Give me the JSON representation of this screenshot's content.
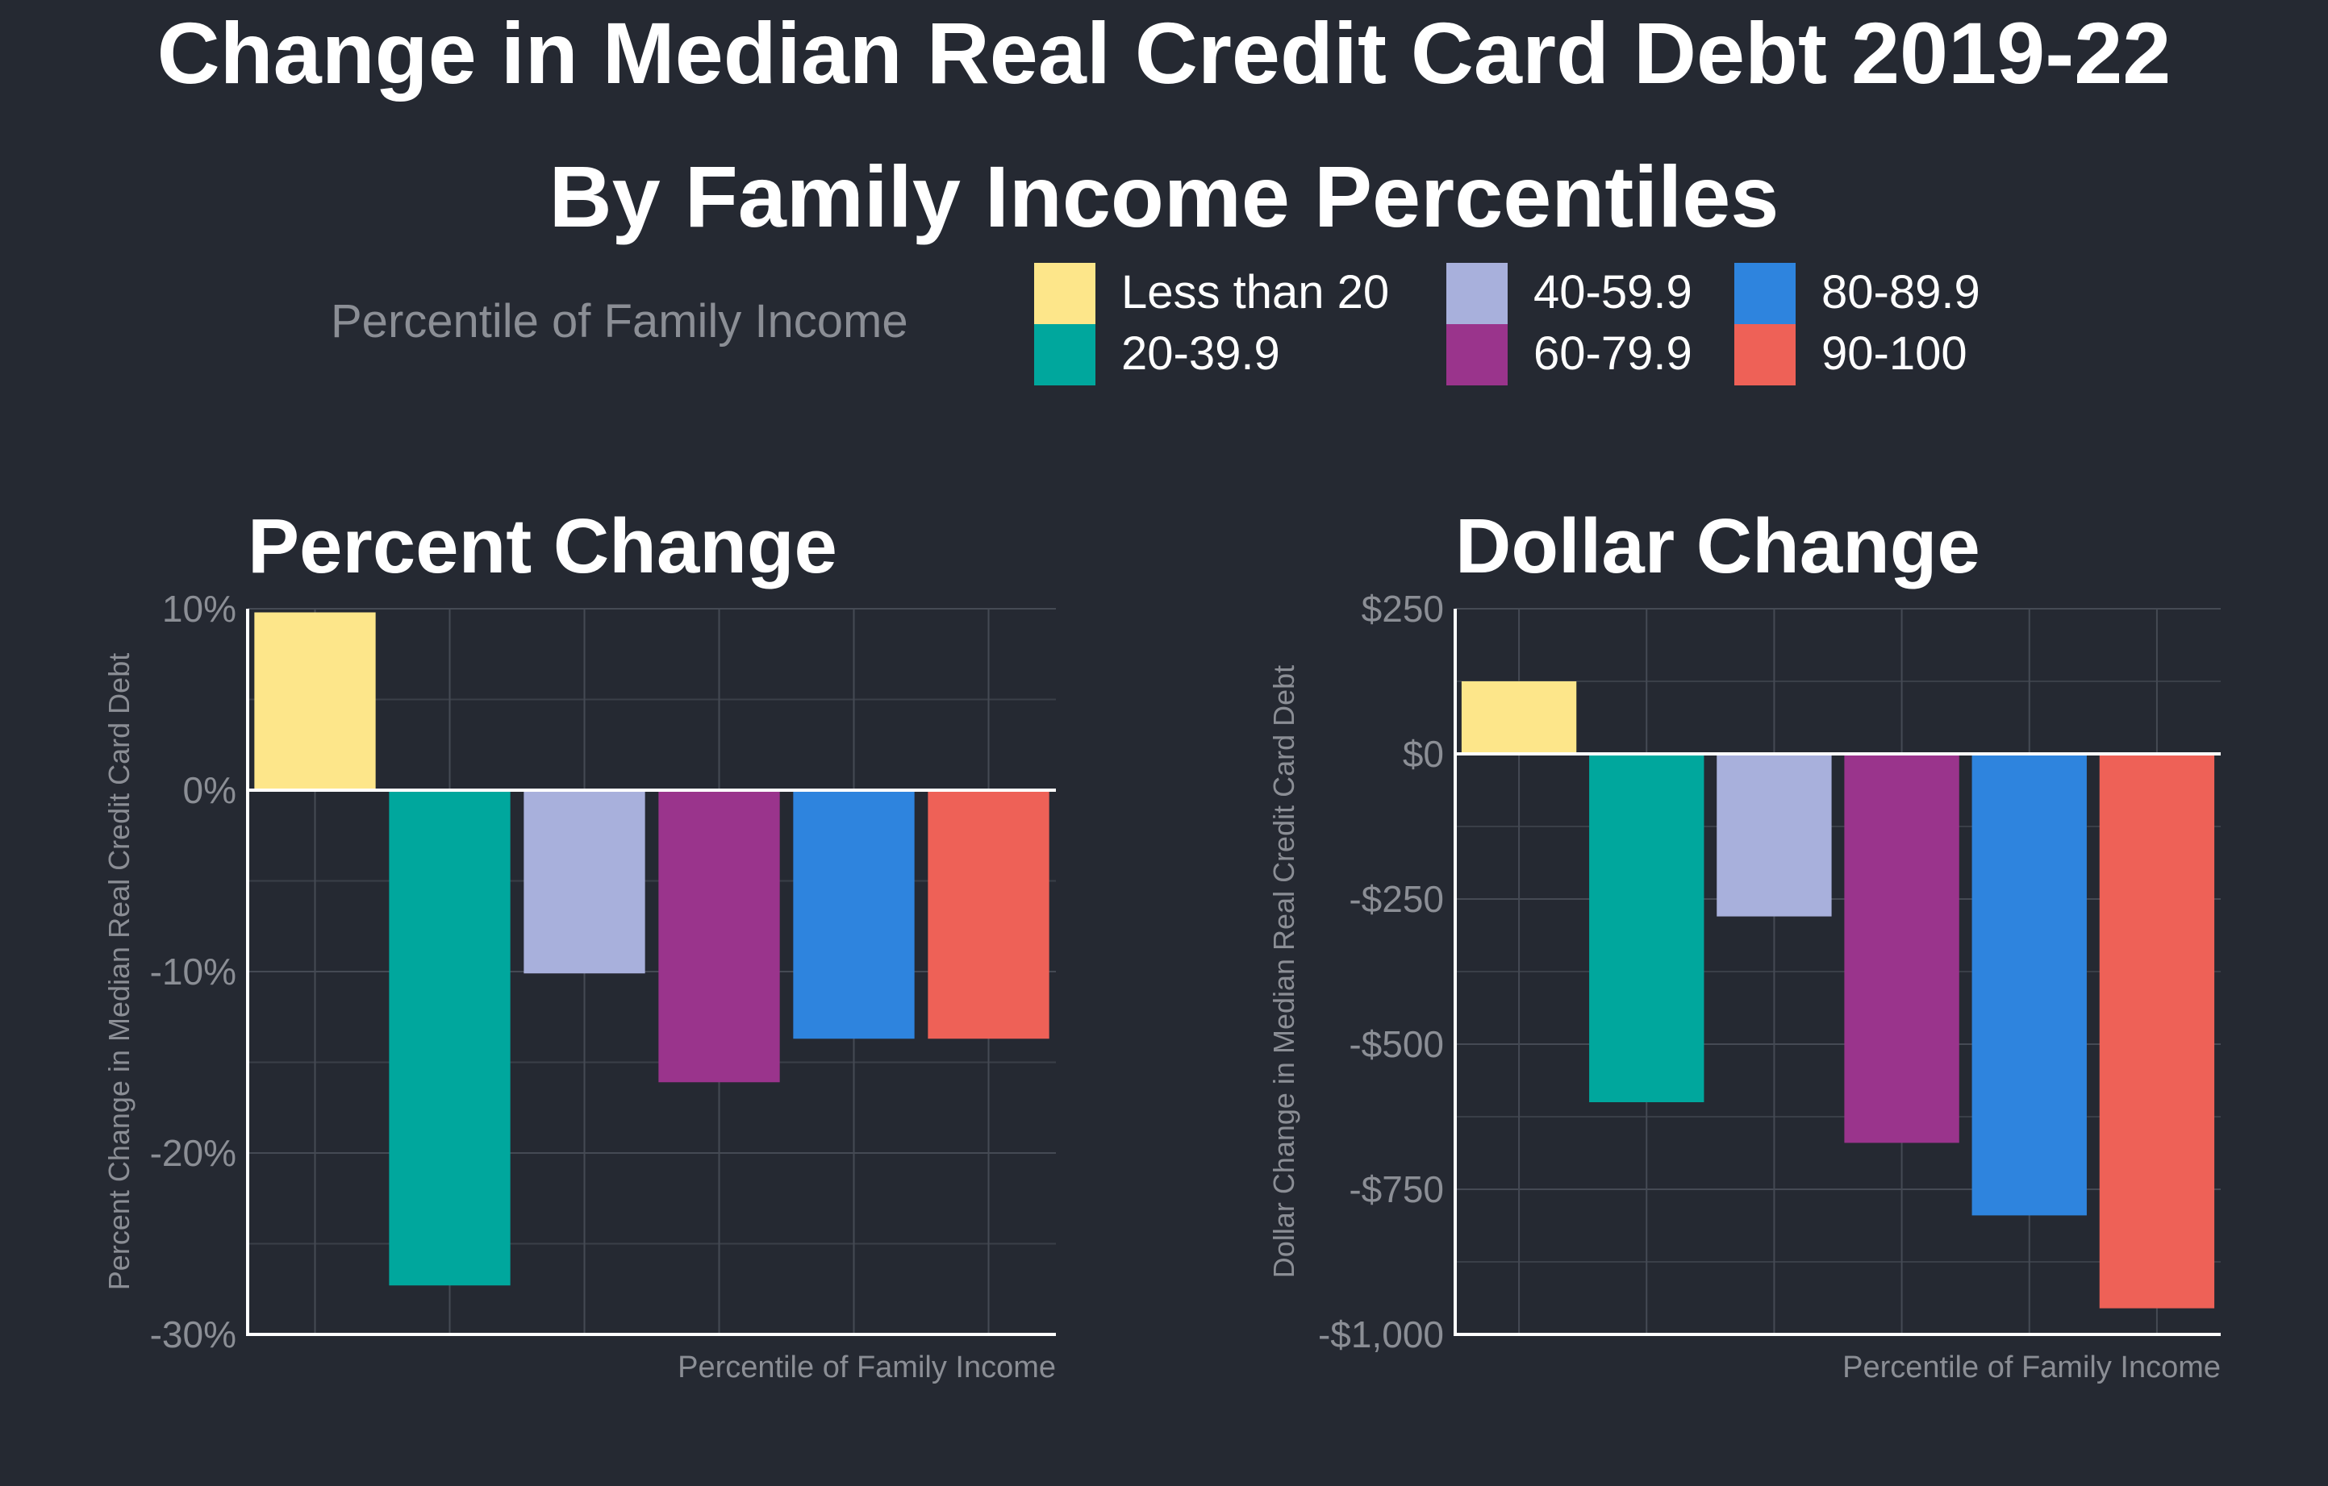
{
  "header": {
    "title": "Change in Median Real Credit Card Debt 2019-22",
    "subtitle": "By Family Income Percentiles"
  },
  "legend": {
    "title": "Percentile of Family Income",
    "items": [
      {
        "label": "Less than 20",
        "color": "#fde68a"
      },
      {
        "label": "20-39.9",
        "color": "#00a79d"
      },
      {
        "label": "40-59.9",
        "color": "#a8b0dc"
      },
      {
        "label": "60-79.9",
        "color": "#9a348c"
      },
      {
        "label": "80-89.9",
        "color": "#2e84de"
      },
      {
        "label": "90-100",
        "color": "#ee6157"
      }
    ]
  },
  "chart_data": [
    {
      "type": "bar",
      "title": "Percent Change",
      "xlabel": "Percentile of Family Income",
      "ylabel": "Percent Change in Median Real Credit Card Debt",
      "categories": [
        "Less than 20",
        "20-39.9",
        "40-59.9",
        "60-79.9",
        "80-89.9",
        "90-100"
      ],
      "values": [
        9.8,
        -27.3,
        -10.1,
        -16.1,
        -13.7,
        -13.7
      ],
      "ylim": [
        -30,
        10
      ],
      "yticks": [
        10,
        0,
        -10,
        -20,
        -30
      ],
      "ytick_labels": [
        "10%",
        "0%",
        "-10%",
        "-20%",
        "-30%"
      ],
      "grid": true,
      "legend": "shared-top"
    },
    {
      "type": "bar",
      "title": "Dollar Change",
      "xlabel": "Percentile of Family Income",
      "ylabel": "Dollar Change in Median Real Credit Card Debt",
      "categories": [
        "Less than 20",
        "20-39.9",
        "40-59.9",
        "60-79.9",
        "80-89.9",
        "90-100"
      ],
      "values": [
        125,
        -600,
        -280,
        -670,
        -795,
        -955
      ],
      "ylim": [
        -1000,
        250
      ],
      "yticks": [
        250,
        0,
        -250,
        -500,
        -750,
        -1000
      ],
      "ytick_labels": [
        "$250",
        "$0",
        "-$250",
        "-$500",
        "-$750",
        "-$1,000"
      ],
      "grid": true,
      "legend": "shared-top"
    }
  ]
}
